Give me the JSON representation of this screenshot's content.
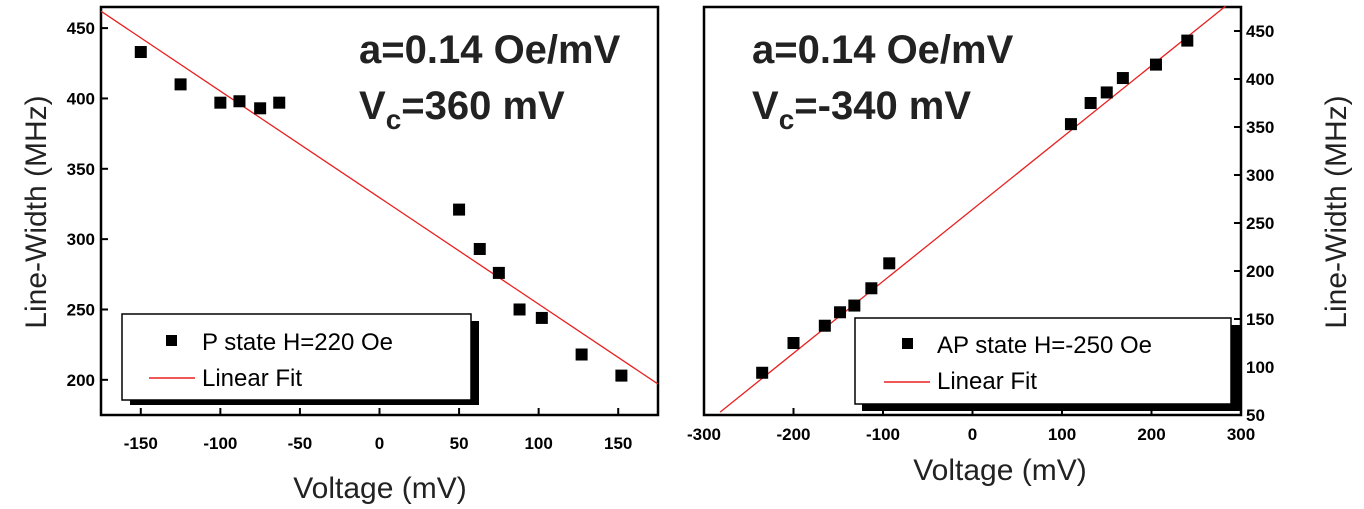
{
  "chart_data": [
    {
      "type": "scatter",
      "xlabel": "Voltage (mV)",
      "ylabel": "Line-Width (MHz)",
      "xlim": [
        -175,
        175
      ],
      "ylim": [
        175,
        465
      ],
      "xticks": [
        -150,
        -100,
        -50,
        0,
        50,
        100,
        150
      ],
      "yticks": [
        200,
        250,
        300,
        350,
        400,
        450
      ],
      "annotation": {
        "line1": "a=0.14 Oe/mV",
        "line2_main": "V",
        "line2_sub": "c",
        "line2_rest": "=360 mV"
      },
      "legend": {
        "position": "bottom-left",
        "marker_label": "P state H=220 Oe",
        "line_label": "Linear Fit"
      },
      "series": [
        {
          "name": "P state H=220 Oe",
          "kind": "points",
          "x": [
            -150,
            -125,
            -100,
            -88,
            -75,
            -63,
            50,
            63,
            75,
            88,
            102,
            127,
            152
          ],
          "y": [
            433,
            410,
            397,
            398,
            393,
            397,
            321,
            293,
            276,
            250,
            244,
            218,
            203
          ]
        },
        {
          "name": "Linear Fit",
          "kind": "line",
          "x": [
            -175,
            175
          ],
          "y": [
            462,
            197
          ]
        }
      ],
      "colors": {
        "points": "#000000",
        "fit": "#e8211f"
      }
    },
    {
      "type": "scatter",
      "xlabel": "Voltage (mV)",
      "ylabel": "Line-Width (MHz)",
      "xlim": [
        -300,
        300
      ],
      "ylim": [
        50,
        475
      ],
      "xticks": [
        -300,
        -200,
        -100,
        0,
        100,
        200,
        300
      ],
      "yticks": [
        50,
        100,
        150,
        200,
        250,
        300,
        350,
        400,
        450
      ],
      "yaxis_side": "right",
      "annotation": {
        "line1": "a=0.14 Oe/mV",
        "line2_main": "V",
        "line2_sub": "c",
        "line2_rest": "=-340 mV"
      },
      "legend": {
        "position": "bottom-right",
        "marker_label": "AP state H=-250 Oe",
        "line_label": "Linear Fit"
      },
      "series": [
        {
          "name": "AP state H=-250 Oe",
          "kind": "points",
          "x": [
            -235,
            -200,
            -165,
            -148,
            -132,
            -113,
            -93,
            110,
            132,
            150,
            168,
            205,
            240
          ],
          "y": [
            94,
            125,
            143,
            157,
            164,
            182,
            208,
            353,
            375,
            386,
            401,
            415,
            440
          ]
        },
        {
          "name": "Linear Fit",
          "kind": "line",
          "x": [
            -282,
            283
          ],
          "y": [
            53,
            476
          ]
        }
      ],
      "colors": {
        "points": "#000000",
        "fit": "#e8211f"
      }
    }
  ]
}
